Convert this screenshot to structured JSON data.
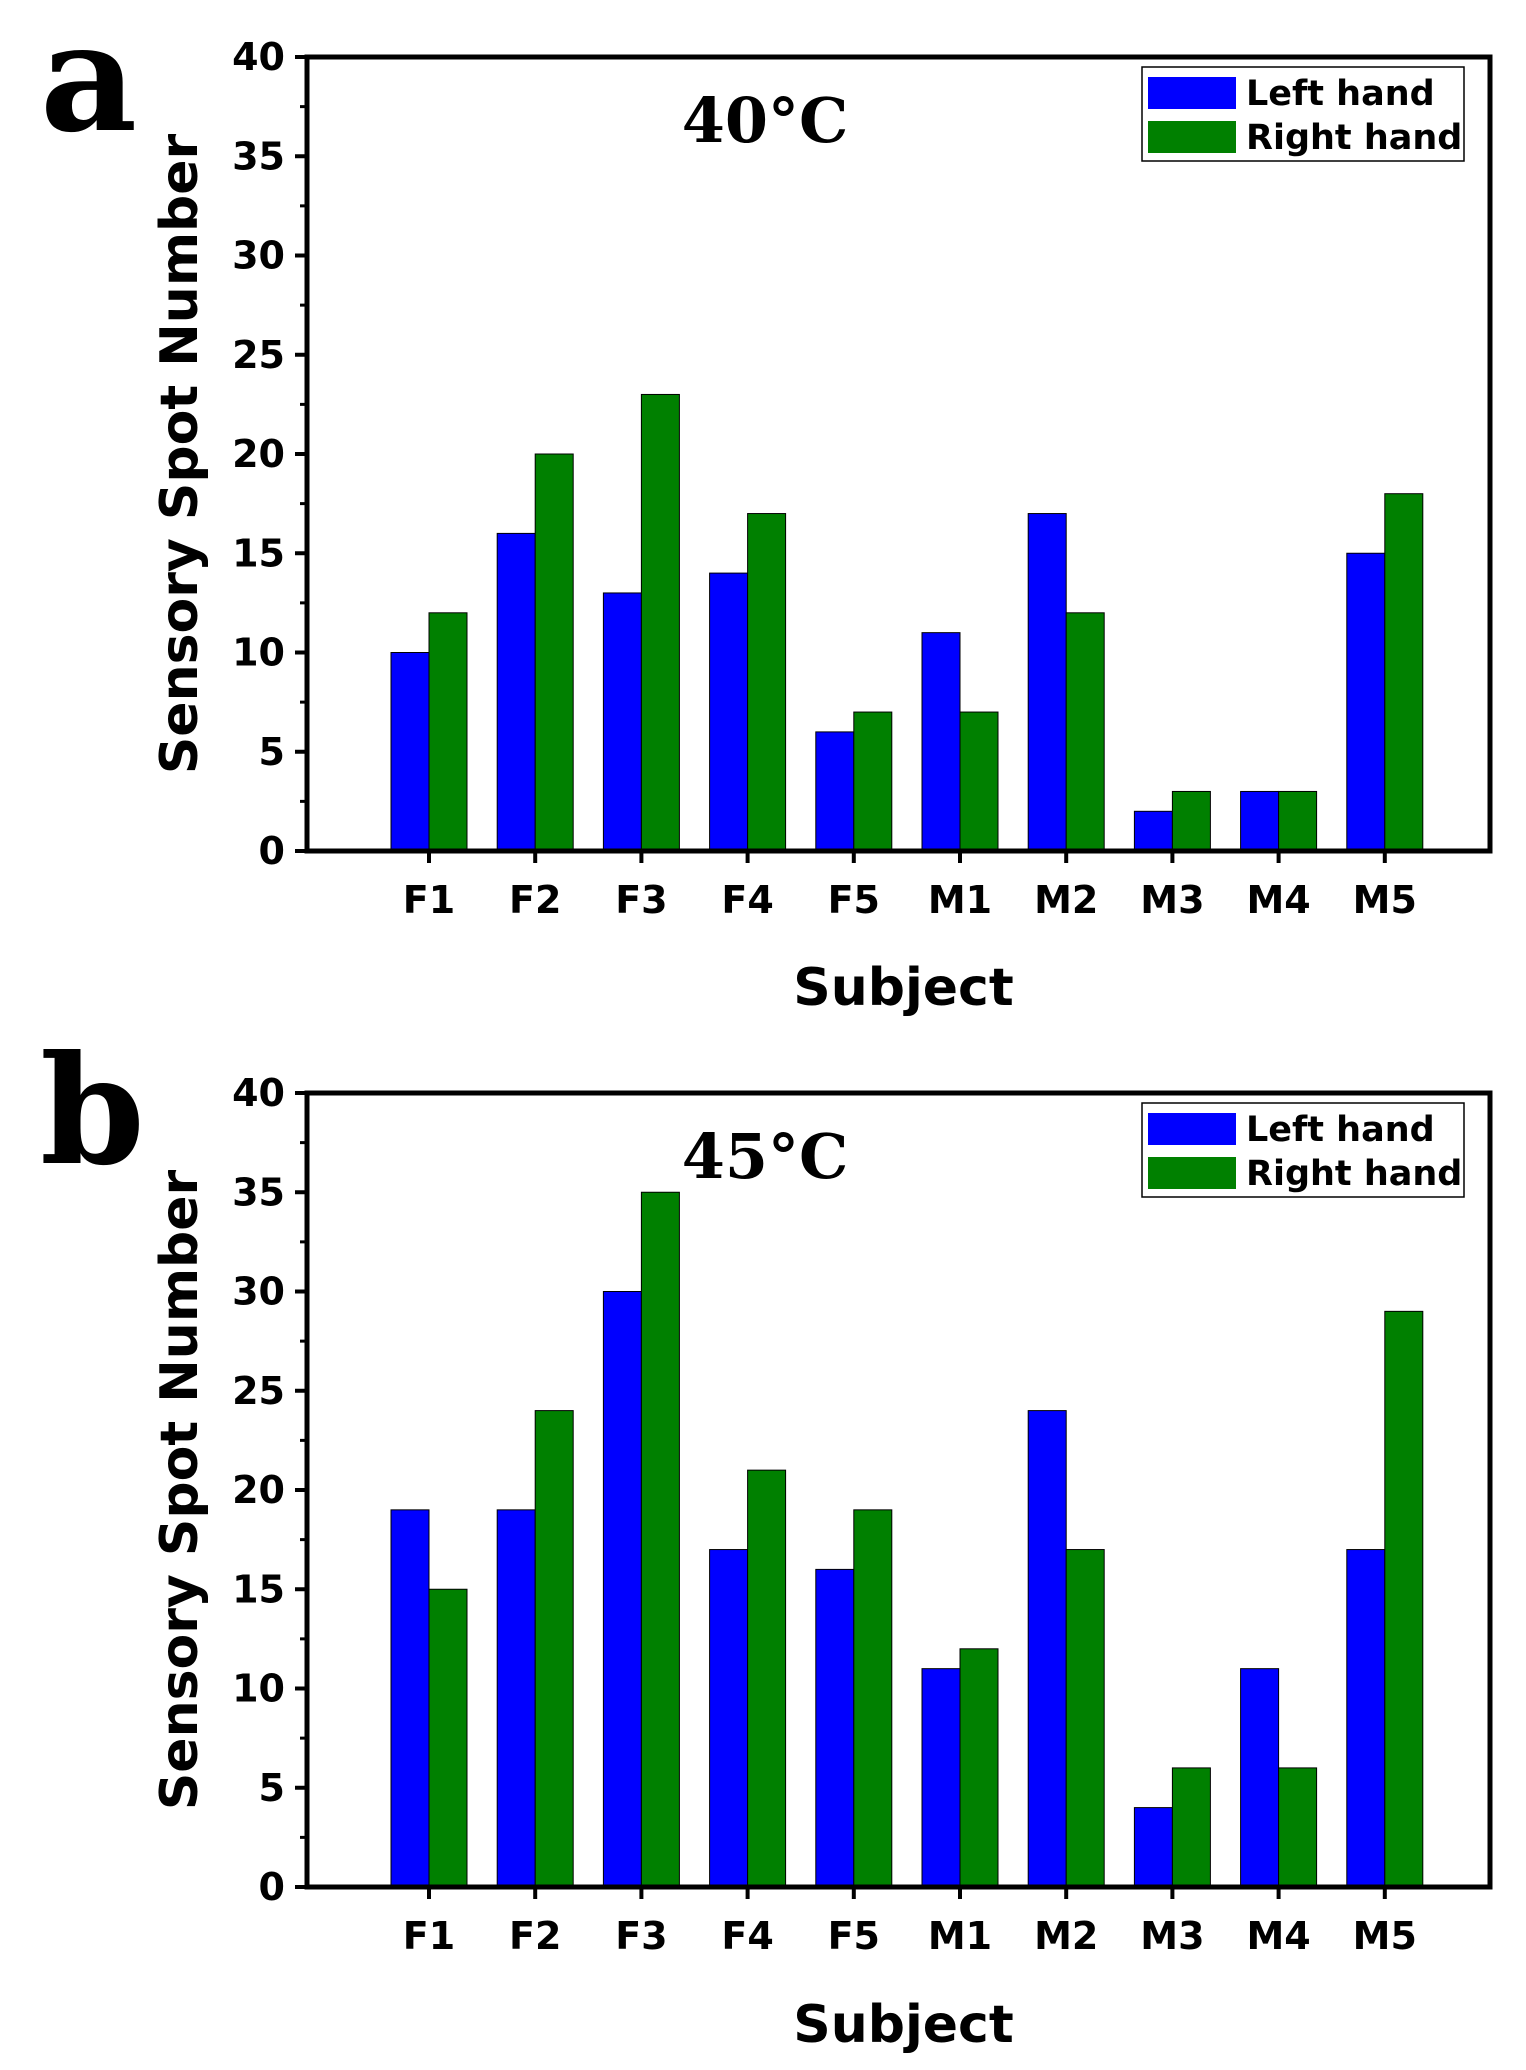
{
  "chart_data": [
    {
      "type": "bar",
      "panel_label": "a",
      "title": "40°C",
      "xlabel": "Subject",
      "ylabel": "Sensory Spot Number",
      "ylim": [
        0,
        40
      ],
      "yticks": [
        0,
        5,
        10,
        15,
        20,
        25,
        30,
        35,
        40
      ],
      "categories": [
        "F1",
        "F2",
        "F3",
        "F4",
        "F5",
        "M1",
        "M2",
        "M3",
        "M4",
        "M5"
      ],
      "series": [
        {
          "name": "Left hand",
          "color": "#0000ff",
          "values": [
            10,
            16,
            13,
            14,
            6,
            11,
            17,
            2,
            3,
            15
          ]
        },
        {
          "name": "Right hand",
          "color": "#008000",
          "values": [
            12,
            20,
            23,
            17,
            7,
            7,
            12,
            3,
            3,
            18
          ]
        }
      ],
      "legend_position": "top-right"
    },
    {
      "type": "bar",
      "panel_label": "b",
      "title": "45°C",
      "xlabel": "Subject",
      "ylabel": "Sensory Spot Number",
      "ylim": [
        0,
        40
      ],
      "yticks": [
        0,
        5,
        10,
        15,
        20,
        25,
        30,
        35,
        40
      ],
      "categories": [
        "F1",
        "F2",
        "F3",
        "F4",
        "F5",
        "M1",
        "M2",
        "M3",
        "M4",
        "M5"
      ],
      "series": [
        {
          "name": "Left hand",
          "color": "#0000ff",
          "values": [
            19,
            19,
            30,
            17,
            16,
            11,
            24,
            4,
            11,
            17
          ]
        },
        {
          "name": "Right hand",
          "color": "#008000",
          "values": [
            15,
            24,
            35,
            21,
            19,
            12,
            17,
            6,
            6,
            29
          ]
        }
      ],
      "legend_position": "top-right"
    }
  ]
}
